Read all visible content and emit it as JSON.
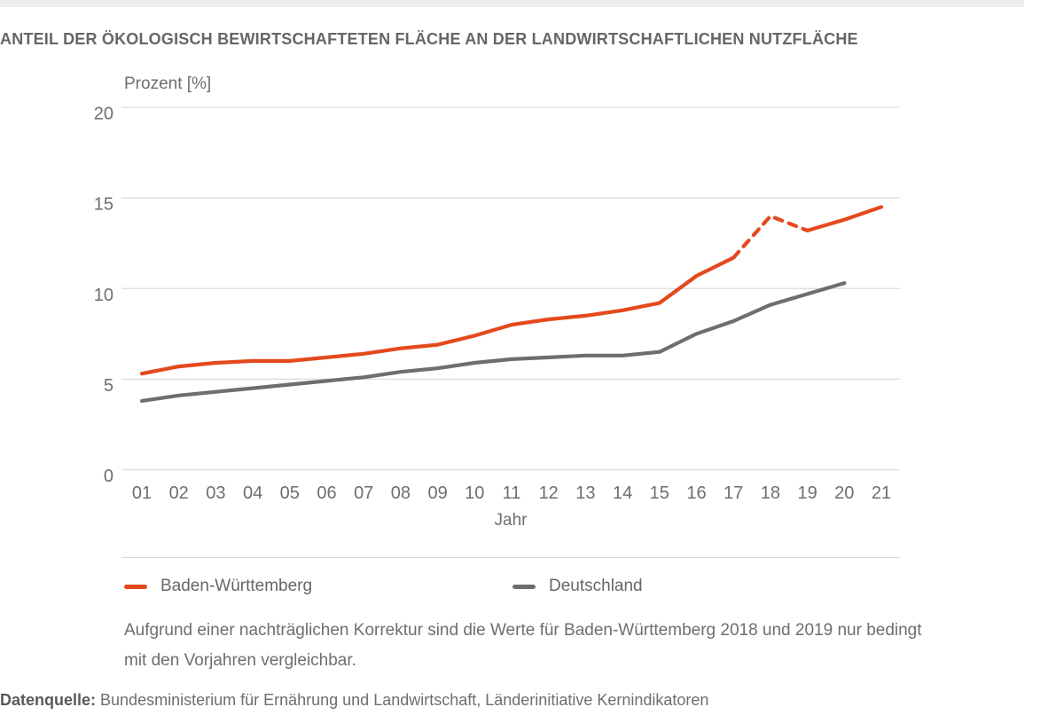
{
  "page": {
    "title": "ANTEIL DER ÖKOLOGISCH BEWIRTSCHAFTETEN FLÄCHE AN DER LANDWIRTSCHAFTLICHEN NUTZFLÄCHE",
    "footnote": "Aufgrund einer nachträglichen Korrektur sind die Werte für Baden-Württemberg 2018 und 2019 nur bedingt mit den Vorjahren vergleichbar.",
    "source_label": "Datenquelle:",
    "source_text": " Bundesministerium für Ernährung und Landwirtschaft, Länderinitiative Kernindikatoren"
  },
  "chart_data": {
    "type": "line",
    "title": "Anteil der ökologisch bewirtschafteten Fläche an der landwirtschaftlichen Nutzfläche",
    "ylabel": "Prozent [%]",
    "xlabel": "Jahr",
    "ylim": [
      0,
      20
    ],
    "y_ticks": [
      0,
      5,
      10,
      15,
      20
    ],
    "grid": true,
    "legend_position": "bottom",
    "categories": [
      "01",
      "02",
      "03",
      "04",
      "05",
      "06",
      "07",
      "08",
      "09",
      "10",
      "11",
      "12",
      "13",
      "14",
      "15",
      "16",
      "17",
      "18",
      "19",
      "20",
      "21"
    ],
    "series": [
      {
        "name": "Baden-Württemberg",
        "color": "#e4491c",
        "values": [
          5.3,
          5.7,
          5.9,
          6.0,
          6.0,
          6.2,
          6.4,
          6.7,
          6.9,
          7.4,
          8.0,
          8.3,
          8.5,
          8.8,
          9.2,
          10.7,
          11.7,
          14.0,
          13.2,
          13.8,
          14.5
        ],
        "dashed_segment": {
          "from_category": "17",
          "to_category": "19",
          "note": "Werte 2018/2019 wegen nachträglicher Korrektur gestrichelt dargestellt"
        }
      },
      {
        "name": "Deutschland",
        "color": "#6e6e6e",
        "values": [
          3.8,
          4.1,
          4.3,
          4.5,
          4.7,
          4.9,
          5.1,
          5.4,
          5.6,
          5.9,
          6.1,
          6.2,
          6.3,
          6.3,
          6.5,
          7.5,
          8.2,
          9.1,
          9.7,
          10.3,
          null
        ]
      }
    ],
    "colors": {
      "grid": "#dcdcdc",
      "axis_text": "#6e6e6e",
      "title_text": "#666666"
    }
  }
}
